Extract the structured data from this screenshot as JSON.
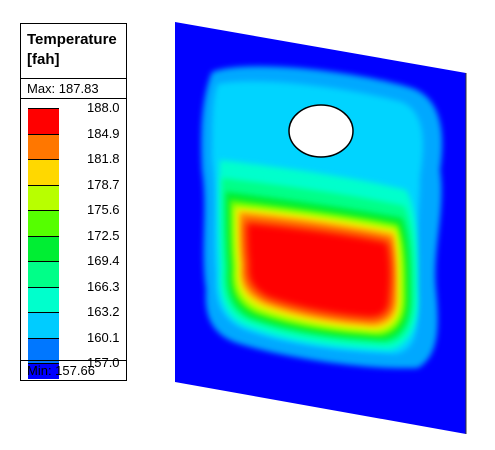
{
  "legend": {
    "title_line1": "Temperature",
    "title_line2": "[fah]",
    "max_label": "Max: 187.83",
    "min_label": "Min: 157.66",
    "scale": [
      {
        "value": "188.0",
        "color": "#ff0000"
      },
      {
        "value": "184.9",
        "color": "#ff7700"
      },
      {
        "value": "181.8",
        "color": "#ffd800"
      },
      {
        "value": "178.7",
        "color": "#b8ff00"
      },
      {
        "value": "175.6",
        "color": "#55ff00"
      },
      {
        "value": "172.5",
        "color": "#00ee33"
      },
      {
        "value": "169.4",
        "color": "#00ff88"
      },
      {
        "value": "166.3",
        "color": "#00ffcc"
      },
      {
        "value": "163.2",
        "color": "#00ccff"
      },
      {
        "value": "160.1",
        "color": "#0077ff"
      },
      {
        "value": "157.0",
        "color": "#0000ff"
      }
    ]
  },
  "plot": {
    "background_color": "#0000ff",
    "hot_color": "#ff0000"
  }
}
